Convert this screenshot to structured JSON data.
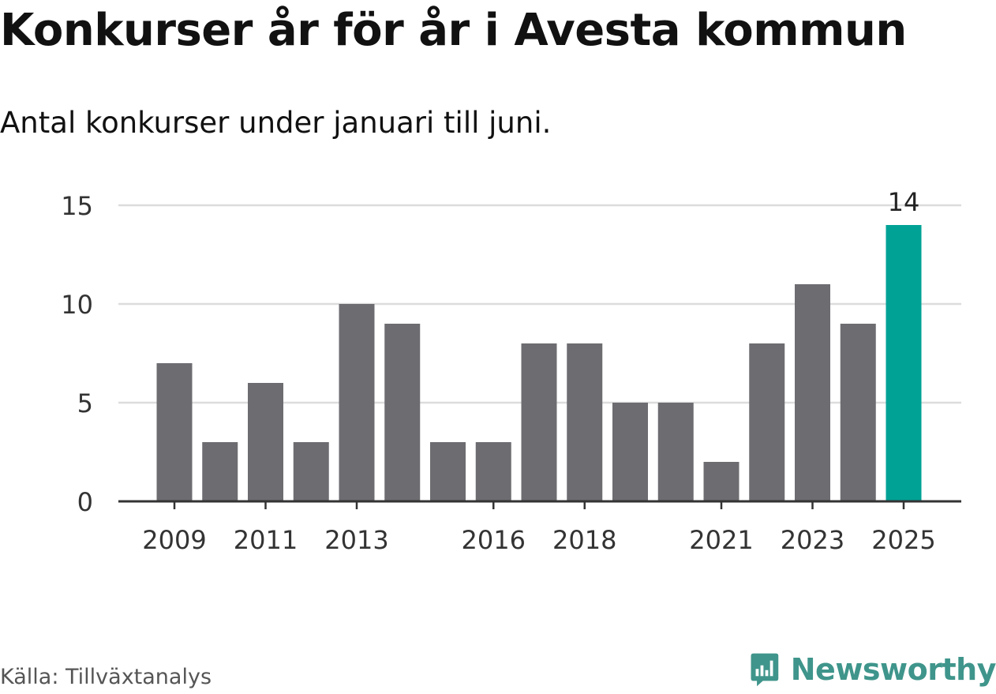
{
  "title": "Konkurser år för år i Avesta kommun",
  "subtitle": "Antal konkurser under januari till juni.",
  "source": "Källa: Tillväxtanalys",
  "brand": {
    "name": "Newsworthy",
    "icon": "newsworthy-logo-icon",
    "color": "#3f958b"
  },
  "chart_data": {
    "type": "bar",
    "categories": [
      "2009",
      "2010",
      "2011",
      "2012",
      "2013",
      "2014",
      "2015",
      "2016",
      "2017",
      "2018",
      "2019",
      "2020",
      "2021",
      "2022",
      "2023",
      "2024",
      "2025"
    ],
    "values": [
      7,
      3,
      6,
      3,
      10,
      9,
      3,
      3,
      8,
      8,
      5,
      5,
      2,
      8,
      11,
      9,
      14
    ],
    "x_tick_labels": [
      "2009",
      "2011",
      "2013",
      "2016",
      "2018",
      "2021",
      "2023",
      "2025"
    ],
    "y_ticks": [
      0,
      5,
      10,
      15
    ],
    "ylim": [
      0,
      15
    ],
    "grid": true,
    "highlight": {
      "category": "2025",
      "label": "14"
    },
    "colors": {
      "bar": "#6d6c71",
      "highlight": "#00a296",
      "grid": "#dcdcdc",
      "axis": "#333333"
    },
    "xlabel": "",
    "ylabel": ""
  }
}
